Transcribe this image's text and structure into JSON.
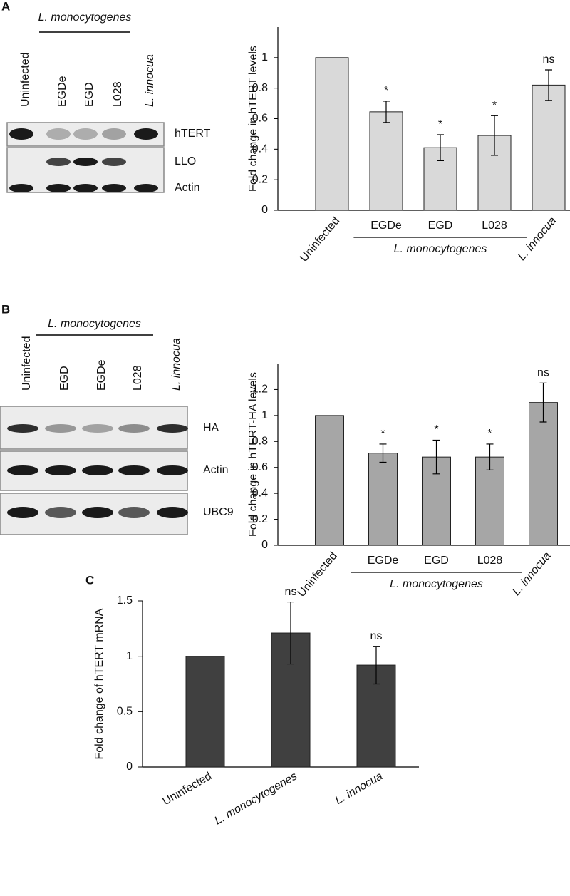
{
  "panel_labels": [
    "A",
    "B",
    "C"
  ],
  "blots": [
    {
      "group": "L. monocytogenes",
      "lanes": [
        "Uninfected",
        "EGDe",
        "EGD",
        "L028",
        "L. innocua"
      ],
      "bands": [
        "hTERT",
        "LLO",
        "Actin"
      ]
    },
    {
      "group": "L. monocytogenes",
      "lanes": [
        "Uninfected",
        "EGD",
        "EGDe",
        "L028",
        "L. innocua"
      ],
      "bands": [
        "HA",
        "Actin",
        "UBC9"
      ]
    }
  ],
  "chart_data": [
    {
      "type": "bar",
      "y_label": "Fold change in hTERT levels",
      "categories": [
        "Uninfected",
        "EGDe",
        "EGD",
        "L028",
        "L. innocua"
      ],
      "group": "L. monocytogenes",
      "values": [
        1,
        0.645,
        0.41,
        0.49,
        0.82
      ],
      "errors": [
        null,
        0.07,
        0.085,
        0.13,
        0.1
      ],
      "annotations": [
        null,
        "*",
        "*",
        "*",
        "ns"
      ],
      "color": "#d9d9d9",
      "ylim": [
        0,
        1.2
      ],
      "yticks": [
        0,
        0.2,
        0.4,
        0.6,
        0.8,
        1
      ]
    },
    {
      "type": "bar",
      "y_label": "Fold change in hTERT-HA levels",
      "categories": [
        "Uninfected",
        "EGDe",
        "EGD",
        "L028",
        "L. innocua"
      ],
      "group": "L. monocytogenes",
      "values": [
        1,
        0.71,
        0.68,
        0.68,
        1.1
      ],
      "errors": [
        null,
        0.07,
        0.13,
        0.1,
        0.15
      ],
      "annotations": [
        null,
        "*",
        "*",
        "*",
        "ns"
      ],
      "color": "#a6a6a6",
      "ylim": [
        0,
        1.4
      ],
      "yticks": [
        0,
        0.2,
        0.4,
        0.6,
        0.8,
        1,
        1.2
      ]
    },
    {
      "type": "bar",
      "y_label": "Fold change of hTERT mRNA",
      "categories": [
        "Uninfected",
        "L. monocytogenes",
        "L. innocua"
      ],
      "values": [
        1,
        1.21,
        0.92
      ],
      "errors": [
        null,
        0.28,
        0.17
      ],
      "annotations": [
        null,
        "ns",
        "ns"
      ],
      "color": "#404040",
      "ylim": [
        0,
        1.5
      ],
      "yticks": [
        0,
        0.5,
        1,
        1.5
      ]
    }
  ]
}
